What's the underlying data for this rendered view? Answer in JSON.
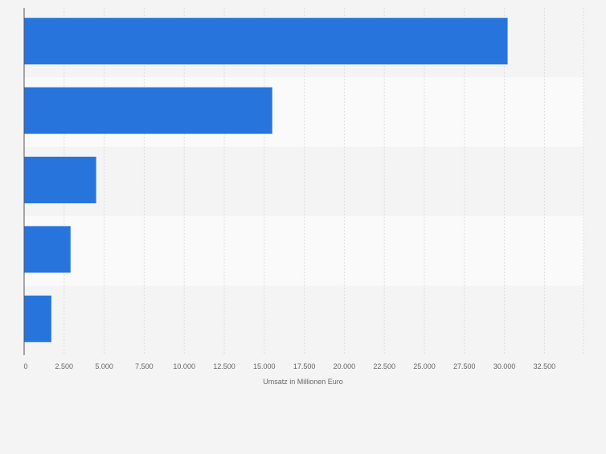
{
  "chart_data": {
    "type": "bar",
    "orientation": "horizontal",
    "categories": [
      "",
      "",
      "",
      "",
      ""
    ],
    "values": [
      30200,
      15500,
      4500,
      2900,
      1700
    ],
    "title": "",
    "xlabel": "Umsatz in Millionen Euro",
    "ylabel": "",
    "xlim": [
      0,
      35000
    ],
    "xticks": [
      0,
      2500,
      5000,
      7500,
      10000,
      12500,
      15000,
      17500,
      20000,
      22500,
      25000,
      27500,
      30000,
      32500
    ],
    "xtick_labels": [
      "0",
      "2.500",
      "5.000",
      "7.500",
      "10.000",
      "12.500",
      "15.000",
      "17.500",
      "20.000",
      "22.500",
      "25.000",
      "27.500",
      "30.000",
      "32.500"
    ],
    "grid": true,
    "legend": "none",
    "colors": {
      "bar": "#2775dc",
      "band_dark": "#f4f4f4",
      "band_light": "#fafafa",
      "grid": "#dddddd",
      "axis": "#555555",
      "tick_text": "#666666"
    }
  }
}
